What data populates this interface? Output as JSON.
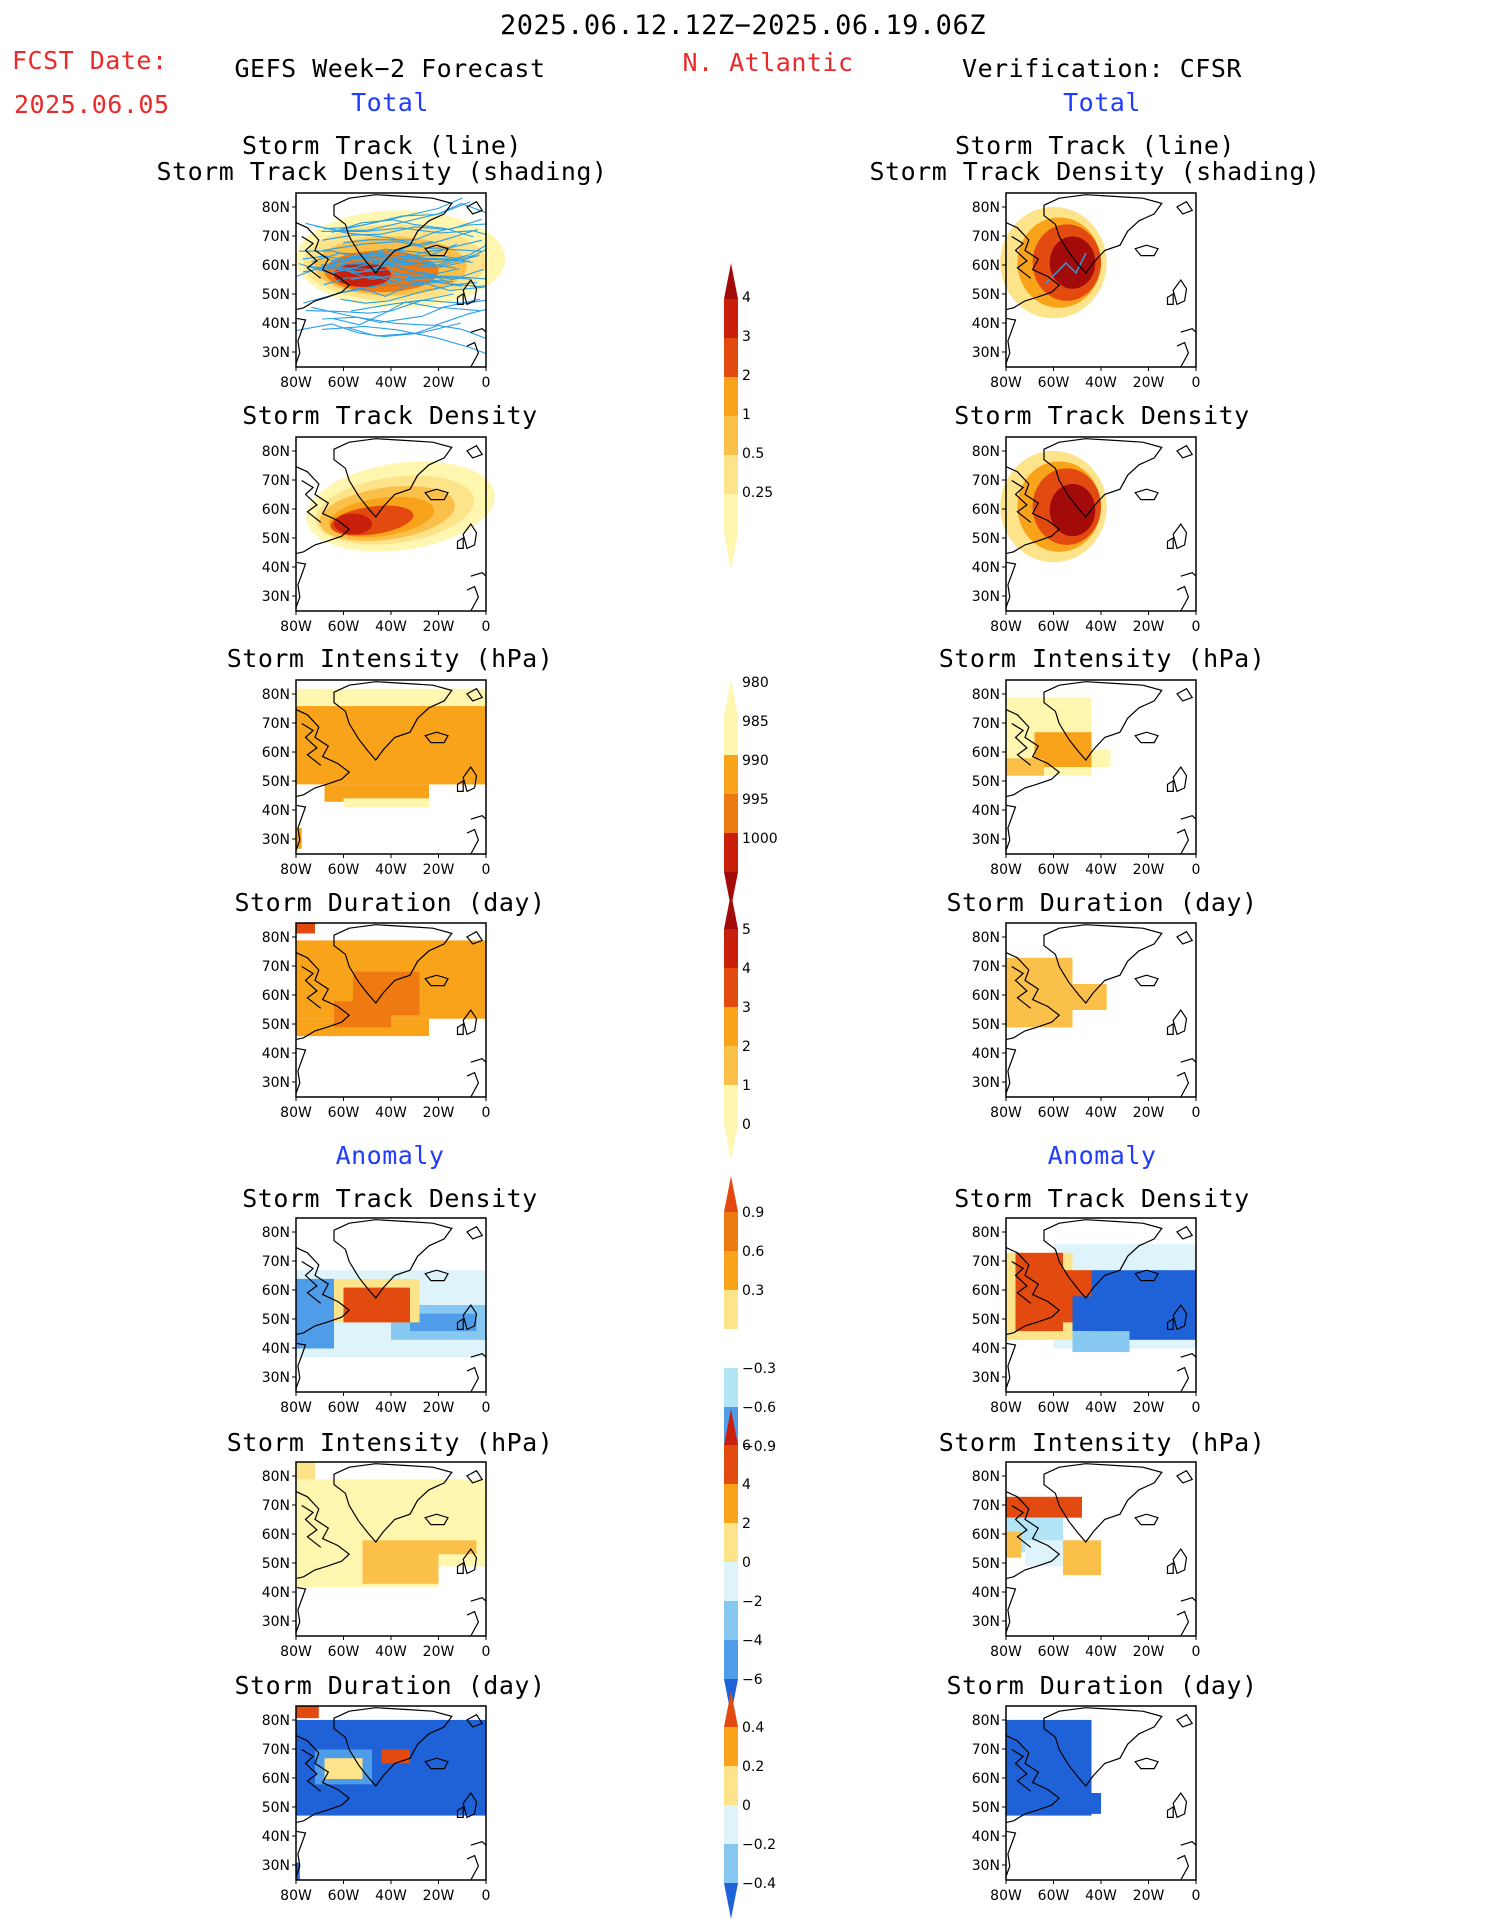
{
  "header": {
    "period": "2025.06.12.12Z−2025.06.19.06Z",
    "fcst_label": "FCST Date:",
    "fcst_date": "2025.06.05",
    "forecast_title": "GEFS Week−2 Forecast",
    "region": "N. Atlantic",
    "verification_title": "Verification: CFSR",
    "total_label": "Total",
    "anomaly_label": "Anomaly"
  },
  "panel_titles": {
    "track_line": "Storm Track (line)",
    "track_shading": "Storm Track Density (shading)",
    "density": "Storm Track Density",
    "intensity": "Storm Intensity (hPa)",
    "duration": "Storm Duration (day)"
  },
  "axes": {
    "lat_labels": [
      "80N",
      "70N",
      "60N",
      "50N",
      "40N",
      "30N"
    ],
    "lon_labels": [
      "80W",
      "60W",
      "40W",
      "20W",
      "0"
    ]
  },
  "colorbars": {
    "density_total": [
      "0.25",
      "0.5",
      "1",
      "2",
      "3",
      "4"
    ],
    "intensity_total": [
      "980",
      "985",
      "990",
      "995",
      "1000"
    ],
    "duration_total": [
      "0",
      "1",
      "2",
      "3",
      "4",
      "5"
    ],
    "density_anomaly": [
      "−0.9",
      "−0.6",
      "−0.3",
      "0.3",
      "0.6",
      "0.9"
    ],
    "intensity_anomaly": [
      "−6",
      "−4",
      "−2",
      "0",
      "2",
      "4",
      "6"
    ],
    "duration_anomaly": [
      "−0.4",
      "−0.2",
      "0",
      "0.2",
      "0.4"
    ]
  },
  "colors": {
    "warm": [
      "#fff6b0",
      "#fde38a",
      "#fbc04a",
      "#f9a31a",
      "#f07a12",
      "#e34a10",
      "#c8200a",
      "#a30a0a"
    ],
    "cool": [
      "#dff3fb",
      "#b3e5f7",
      "#86c8f0",
      "#4f9ce8",
      "#1f62d8"
    ],
    "track_line": "#2aa0e8",
    "red_text": "#e82a2a",
    "blue_text": "#1f3cff"
  }
}
